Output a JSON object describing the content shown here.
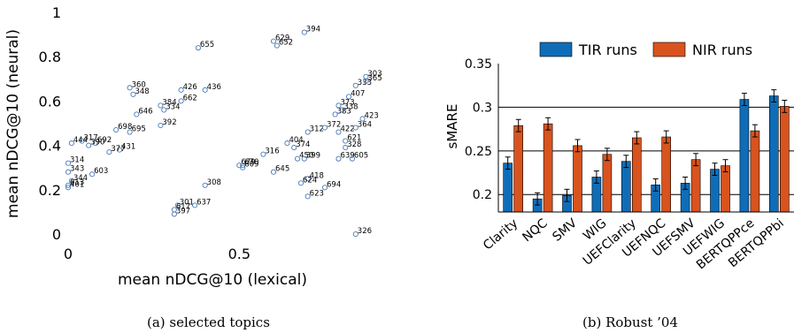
{
  "captions": {
    "a": "(a) selected topics",
    "b": "(b) Robust ’04"
  },
  "chart_data": [
    {
      "type": "scatter",
      "xlabel": "mean nDCG@10 (lexical)",
      "ylabel": "mean nDCG@10 (neural)",
      "xlim": [
        0,
        0.9
      ],
      "ylim": [
        0,
        1
      ],
      "xticks": [
        "0",
        "0.5"
      ],
      "yticks": [
        "0",
        "0.2",
        "0.4",
        "0.6",
        "0.8",
        "1"
      ],
      "marker_color": "#4a7ab8",
      "points": [
        {
          "label": "655",
          "x": 0.38,
          "y": 0.84
        },
        {
          "label": "394",
          "x": 0.69,
          "y": 0.91
        },
        {
          "label": "629",
          "x": 0.6,
          "y": 0.87
        },
        {
          "label": "652",
          "x": 0.61,
          "y": 0.85
        },
        {
          "label": "360",
          "x": 0.18,
          "y": 0.66
        },
        {
          "label": "348",
          "x": 0.19,
          "y": 0.63
        },
        {
          "label": "426",
          "x": 0.33,
          "y": 0.65
        },
        {
          "label": "436",
          "x": 0.4,
          "y": 0.65
        },
        {
          "label": "662",
          "x": 0.33,
          "y": 0.6
        },
        {
          "label": "384",
          "x": 0.27,
          "y": 0.58
        },
        {
          "label": "334",
          "x": 0.28,
          "y": 0.56
        },
        {
          "label": "646",
          "x": 0.2,
          "y": 0.54
        },
        {
          "label": "392",
          "x": 0.27,
          "y": 0.49
        },
        {
          "label": "698",
          "x": 0.14,
          "y": 0.47
        },
        {
          "label": "695",
          "x": 0.18,
          "y": 0.46
        },
        {
          "label": "317",
          "x": 0.04,
          "y": 0.42
        },
        {
          "label": "692",
          "x": 0.08,
          "y": 0.41
        },
        {
          "label": "444",
          "x": 0.01,
          "y": 0.41
        },
        {
          "label": "390",
          "x": 0.06,
          "y": 0.4
        },
        {
          "label": "431",
          "x": 0.15,
          "y": 0.38
        },
        {
          "label": "377",
          "x": 0.12,
          "y": 0.37
        },
        {
          "label": "314",
          "x": 0.0,
          "y": 0.32
        },
        {
          "label": "343",
          "x": 0.0,
          "y": 0.28
        },
        {
          "label": "603",
          "x": 0.07,
          "y": 0.27
        },
        {
          "label": "344",
          "x": 0.01,
          "y": 0.24
        },
        {
          "label": "613",
          "x": 0.0,
          "y": 0.22
        },
        {
          "label": "401",
          "x": 0.0,
          "y": 0.21
        },
        {
          "label": "308",
          "x": 0.4,
          "y": 0.22
        },
        {
          "label": "301",
          "x": 0.32,
          "y": 0.13
        },
        {
          "label": "637",
          "x": 0.37,
          "y": 0.13
        },
        {
          "label": "617",
          "x": 0.31,
          "y": 0.11
        },
        {
          "label": "397",
          "x": 0.31,
          "y": 0.09
        },
        {
          "label": "679",
          "x": 0.5,
          "y": 0.31
        },
        {
          "label": "670",
          "x": 0.51,
          "y": 0.31
        },
        {
          "label": "609",
          "x": 0.51,
          "y": 0.3
        },
        {
          "label": "316",
          "x": 0.57,
          "y": 0.36
        },
        {
          "label": "645",
          "x": 0.6,
          "y": 0.28
        },
        {
          "label": "404",
          "x": 0.64,
          "y": 0.41
        },
        {
          "label": "374",
          "x": 0.66,
          "y": 0.39
        },
        {
          "label": "312",
          "x": 0.7,
          "y": 0.46
        },
        {
          "label": "372",
          "x": 0.75,
          "y": 0.48
        },
        {
          "label": "422",
          "x": 0.79,
          "y": 0.46
        },
        {
          "label": "450",
          "x": 0.67,
          "y": 0.34
        },
        {
          "label": "399",
          "x": 0.69,
          "y": 0.34
        },
        {
          "label": "418",
          "x": 0.7,
          "y": 0.25
        },
        {
          "label": "624",
          "x": 0.68,
          "y": 0.23
        },
        {
          "label": "694",
          "x": 0.75,
          "y": 0.21
        },
        {
          "label": "623",
          "x": 0.7,
          "y": 0.17
        },
        {
          "label": "639",
          "x": 0.79,
          "y": 0.34
        },
        {
          "label": "605",
          "x": 0.83,
          "y": 0.34
        },
        {
          "label": "621",
          "x": 0.81,
          "y": 0.42
        },
        {
          "label": "328",
          "x": 0.81,
          "y": 0.39
        },
        {
          "label": "364",
          "x": 0.84,
          "y": 0.48
        },
        {
          "label": "423",
          "x": 0.86,
          "y": 0.52
        },
        {
          "label": "383",
          "x": 0.78,
          "y": 0.54
        },
        {
          "label": "373",
          "x": 0.79,
          "y": 0.58
        },
        {
          "label": "338",
          "x": 0.8,
          "y": 0.56
        },
        {
          "label": "407",
          "x": 0.82,
          "y": 0.62
        },
        {
          "label": "333",
          "x": 0.84,
          "y": 0.67
        },
        {
          "label": "303",
          "x": 0.87,
          "y": 0.71
        },
        {
          "label": "365",
          "x": 0.87,
          "y": 0.69
        },
        {
          "label": "326",
          "x": 0.84,
          "y": 0.0
        }
      ]
    },
    {
      "type": "bar",
      "ylabel": "sMARE",
      "ylim": [
        0.18,
        0.35
      ],
      "yticks": [
        "0.2",
        "0.25",
        "0.3",
        "0.35"
      ],
      "grid": "horizontal",
      "legend_position": "top",
      "categories": [
        "Clarity",
        "NQC",
        "SMV",
        "WIG",
        "UEFClarity",
        "UEFNQC",
        "UEFSMV",
        "UEFWIG",
        "BERTQPPce",
        "BERTQPPbi"
      ],
      "series": [
        {
          "name": "TIR runs",
          "color": "#0f6db8",
          "values": [
            0.236,
            0.195,
            0.199,
            0.22,
            0.238,
            0.211,
            0.213,
            0.229,
            0.309,
            0.313
          ],
          "errors": [
            0.007,
            0.007,
            0.007,
            0.007,
            0.007,
            0.007,
            0.007,
            0.007,
            0.007,
            0.007
          ]
        },
        {
          "name": "NIR runs",
          "color": "#d9531e",
          "values": [
            0.279,
            0.281,
            0.256,
            0.246,
            0.265,
            0.266,
            0.24,
            0.233,
            0.273,
            0.301
          ],
          "errors": [
            0.007,
            0.007,
            0.007,
            0.007,
            0.007,
            0.007,
            0.007,
            0.007,
            0.007,
            0.007
          ]
        }
      ]
    }
  ]
}
